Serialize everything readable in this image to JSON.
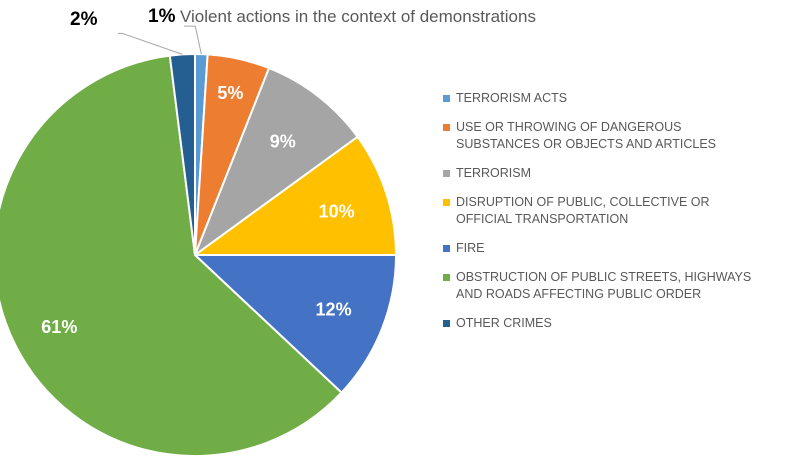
{
  "chart_data": {
    "type": "pie",
    "title": "Violent actions in the context of demonstrations",
    "categories": [
      "TERRORISM ACTS",
      "USE OR THROWING OF DANGEROUS SUBSTANCES OR OBJECTS AND ARTICLES",
      "TERRORISM",
      "DISRUPTION OF PUBLIC, COLLECTIVE OR OFFICIAL TRANSPORTATION",
      "FIRE",
      "OBSTRUCTION OF PUBLIC STREETS, HIGHWAYS AND ROADS AFFECTING PUBLIC ORDER",
      "OTHER CRIMES"
    ],
    "legend_lines": [
      [
        "TERRORISM ACTS"
      ],
      [
        "USE OR THROWING OF DANGEROUS",
        "SUBSTANCES OR OBJECTS AND ARTICLES"
      ],
      [
        "TERRORISM"
      ],
      [
        "DISRUPTION OF PUBLIC, COLLECTIVE OR",
        "OFFICIAL TRANSPORTATION"
      ],
      [
        "FIRE"
      ],
      [
        "OBSTRUCTION OF PUBLIC STREETS, HIGHWAYS",
        "AND ROADS AFFECTING PUBLIC ORDER"
      ],
      [
        "OTHER CRIMES"
      ]
    ],
    "values": [
      1,
      5,
      9,
      10,
      12,
      61,
      2
    ],
    "labels": [
      "1%",
      "5%",
      "9%",
      "10%",
      "12%",
      "61%",
      "2%"
    ],
    "colors": [
      "#5b9bd5",
      "#ed7d31",
      "#a5a5a5",
      "#ffc000",
      "#4472c4",
      "#70ad47",
      "#255e91"
    ],
    "legend_position": "right"
  }
}
